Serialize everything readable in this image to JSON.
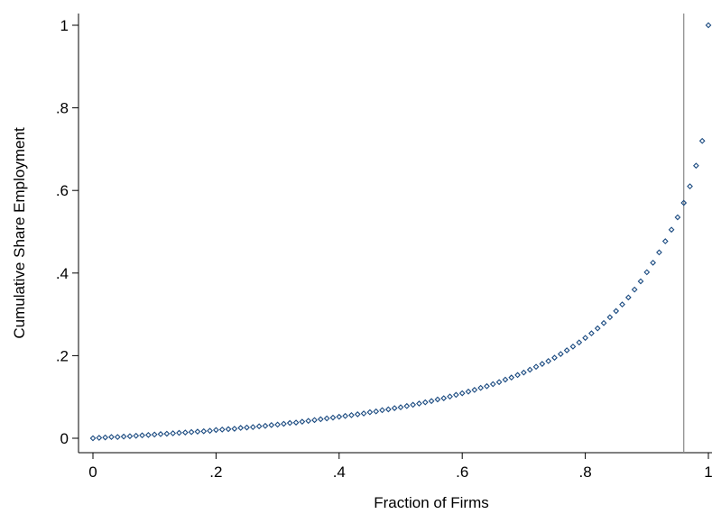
{
  "chart_data": {
    "type": "scatter",
    "xlabel": "Fraction of Firms",
    "ylabel": "Cumulative Share Employment",
    "xlim": [
      0,
      1
    ],
    "ylim": [
      0,
      1
    ],
    "xticks": [
      {
        "value": 0,
        "label": "0"
      },
      {
        "value": 0.2,
        "label": ".2"
      },
      {
        "value": 0.4,
        "label": ".4"
      },
      {
        "value": 0.6,
        "label": ".6"
      },
      {
        "value": 0.8,
        "label": ".8"
      },
      {
        "value": 1,
        "label": "1"
      }
    ],
    "yticks": [
      {
        "value": 0,
        "label": "0"
      },
      {
        "value": 0.2,
        "label": ".2"
      },
      {
        "value": 0.4,
        "label": ".4"
      },
      {
        "value": 0.6,
        "label": ".6"
      },
      {
        "value": 0.8,
        "label": ".8"
      },
      {
        "value": 1,
        "label": "1"
      }
    ],
    "grid": false,
    "reference_line_x": 0.96,
    "marker_color": "#1a4a80",
    "reference_line_color": "#888888",
    "series": [
      {
        "x": [
          0,
          0.01,
          0.02,
          0.03,
          0.04,
          0.05,
          0.06,
          0.07,
          0.08,
          0.09,
          0.1,
          0.11,
          0.12,
          0.13,
          0.14,
          0.15,
          0.16,
          0.17,
          0.18,
          0.19,
          0.2,
          0.21,
          0.22,
          0.23,
          0.24,
          0.25,
          0.26,
          0.27,
          0.28,
          0.29,
          0.3,
          0.31,
          0.32,
          0.33,
          0.34,
          0.35,
          0.36,
          0.37,
          0.38,
          0.39,
          0.4,
          0.41,
          0.42,
          0.43,
          0.44,
          0.45,
          0.46,
          0.47,
          0.48,
          0.49,
          0.5,
          0.51,
          0.52,
          0.53,
          0.54,
          0.55,
          0.56,
          0.57,
          0.58,
          0.59,
          0.6,
          0.61,
          0.62,
          0.63,
          0.64,
          0.65,
          0.66,
          0.67,
          0.68,
          0.69,
          0.7,
          0.71,
          0.72,
          0.73,
          0.74,
          0.75,
          0.76,
          0.77,
          0.78,
          0.79,
          0.8,
          0.81,
          0.82,
          0.83,
          0.84,
          0.85,
          0.86,
          0.87,
          0.88,
          0.89,
          0.9,
          0.91,
          0.92,
          0.93,
          0.94,
          0.95,
          0.96,
          0.97,
          0.98,
          0.99,
          1.0
        ],
        "y": [
          0,
          0.001,
          0.002,
          0.003,
          0.003,
          0.004,
          0.005,
          0.006,
          0.007,
          0.008,
          0.009,
          0.01,
          0.011,
          0.012,
          0.013,
          0.014,
          0.015,
          0.016,
          0.017,
          0.018,
          0.02,
          0.021,
          0.022,
          0.023,
          0.025,
          0.026,
          0.027,
          0.029,
          0.03,
          0.032,
          0.033,
          0.035,
          0.037,
          0.038,
          0.04,
          0.042,
          0.044,
          0.046,
          0.048,
          0.05,
          0.052,
          0.054,
          0.056,
          0.058,
          0.06,
          0.063,
          0.065,
          0.068,
          0.07,
          0.073,
          0.075,
          0.078,
          0.081,
          0.084,
          0.087,
          0.09,
          0.094,
          0.097,
          0.101,
          0.105,
          0.109,
          0.113,
          0.117,
          0.122,
          0.126,
          0.131,
          0.136,
          0.142,
          0.147,
          0.153,
          0.159,
          0.166,
          0.173,
          0.18,
          0.187,
          0.195,
          0.204,
          0.213,
          0.222,
          0.232,
          0.243,
          0.254,
          0.266,
          0.279,
          0.293,
          0.308,
          0.324,
          0.341,
          0.36,
          0.38,
          0.402,
          0.425,
          0.45,
          0.477,
          0.505,
          0.535,
          0.57,
          0.61,
          0.66,
          0.72,
          1.0
        ]
      }
    ]
  }
}
